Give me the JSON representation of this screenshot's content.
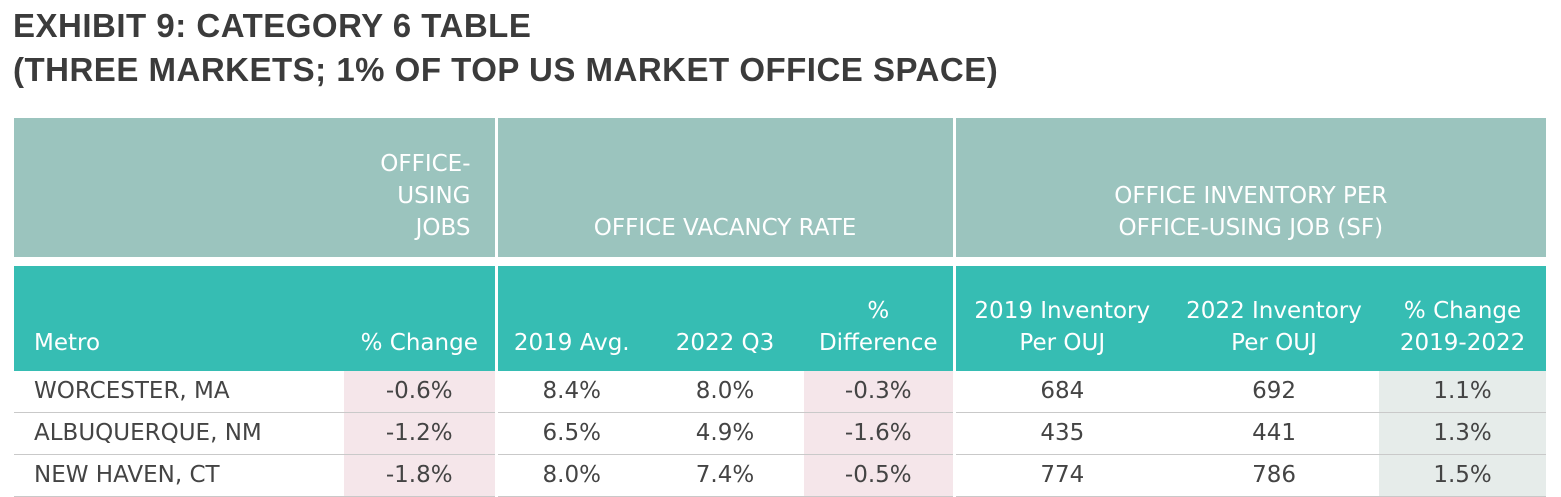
{
  "title": {
    "line1": "EXHIBIT 9: CATEGORY 6 TABLE",
    "line2": "(THREE MARKETS; 1% OF TOP US MARKET OFFICE SPACE)"
  },
  "group_headers": {
    "jobs_line1": "OFFICE-",
    "jobs_line2": "USING",
    "jobs_line3": "JOBS",
    "vacancy": "OFFICE VACANCY RATE",
    "inventory_line1": "OFFICE INVENTORY PER",
    "inventory_line2": "OFFICE-USING JOB (SF)"
  },
  "column_headers": {
    "metro": "Metro",
    "jobs_change": "% Change",
    "avg_2019": "2019 Avg.",
    "q3_2022": "2022 Q3",
    "diff_line1": "%",
    "diff_line2": "Difference",
    "inv2019_line1": "2019 Inventory",
    "inv2019_line2": "Per OUJ",
    "inv2022_line1": "2022 Inventory",
    "inv2022_line2": "Per OUJ",
    "invchange_line1": "% Change",
    "invchange_line2": "2019-2022"
  },
  "rows": [
    {
      "metro": "WORCESTER, MA",
      "jobs_change": "-0.6%",
      "avg_2019": "8.4%",
      "q3_2022": "8.0%",
      "difference": "-0.3%",
      "inv_2019": "684",
      "inv_2022": "692",
      "inv_change": "1.1%"
    },
    {
      "metro": "ALBUQUERQUE, NM",
      "jobs_change": "-1.2%",
      "avg_2019": "6.5%",
      "q3_2022": "4.9%",
      "difference": "-1.6%",
      "inv_2019": "435",
      "inv_2022": "441",
      "inv_change": "1.3%"
    },
    {
      "metro": "NEW HAVEN, CT",
      "jobs_change": "-1.8%",
      "avg_2019": "8.0%",
      "q3_2022": "7.4%",
      "difference": "-0.5%",
      "inv_2019": "774",
      "inv_2022": "786",
      "inv_change": "1.5%"
    }
  ],
  "colors": {
    "group_header_bg": "#9bc4be",
    "column_header_bg": "#36bdb3",
    "highlight_pink": "#f5e6ea",
    "highlight_gray": "#e6ecea"
  }
}
